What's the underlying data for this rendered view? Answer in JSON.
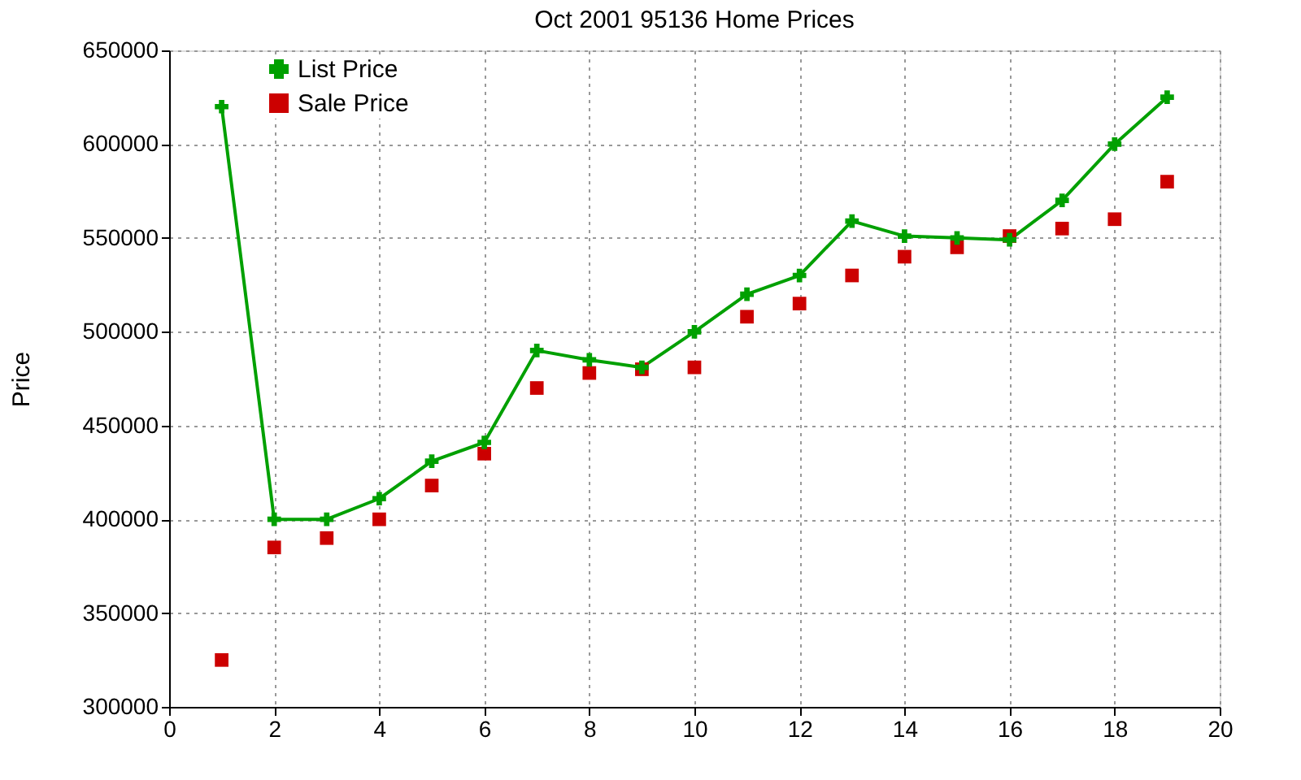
{
  "chart_data": {
    "type": "line",
    "title": "Oct 2001 95136 Home Prices",
    "ylabel": "Price",
    "x": [
      1,
      2,
      3,
      4,
      5,
      6,
      7,
      8,
      9,
      10,
      11,
      12,
      13,
      14,
      15,
      16,
      17,
      18,
      19
    ],
    "series": [
      {
        "name": "List Price",
        "marker": "cross",
        "color": "#00a000",
        "values": [
          620000,
          400000,
          400000,
          411000,
          431000,
          441000,
          490000,
          485000,
          481000,
          500000,
          520000,
          530000,
          559000,
          551000,
          550000,
          549000,
          570000,
          600000,
          625000
        ]
      },
      {
        "name": "Sale Price",
        "type": "scatter",
        "marker": "square",
        "color": "#cc0000",
        "values": [
          325000,
          385000,
          390000,
          400000,
          418000,
          435000,
          470000,
          478000,
          480000,
          481000,
          508000,
          515000,
          530000,
          540000,
          545000,
          551000,
          555000,
          560000,
          580000
        ]
      }
    ],
    "xlim": [
      0,
      20
    ],
    "xticks": [
      0,
      2,
      4,
      6,
      8,
      10,
      12,
      14,
      16,
      18,
      20
    ],
    "ylim": [
      300000,
      650000
    ],
    "yticks": [
      300000,
      350000,
      400000,
      450000,
      500000,
      550000,
      600000,
      650000
    ],
    "grid": true,
    "legend": "top left"
  }
}
